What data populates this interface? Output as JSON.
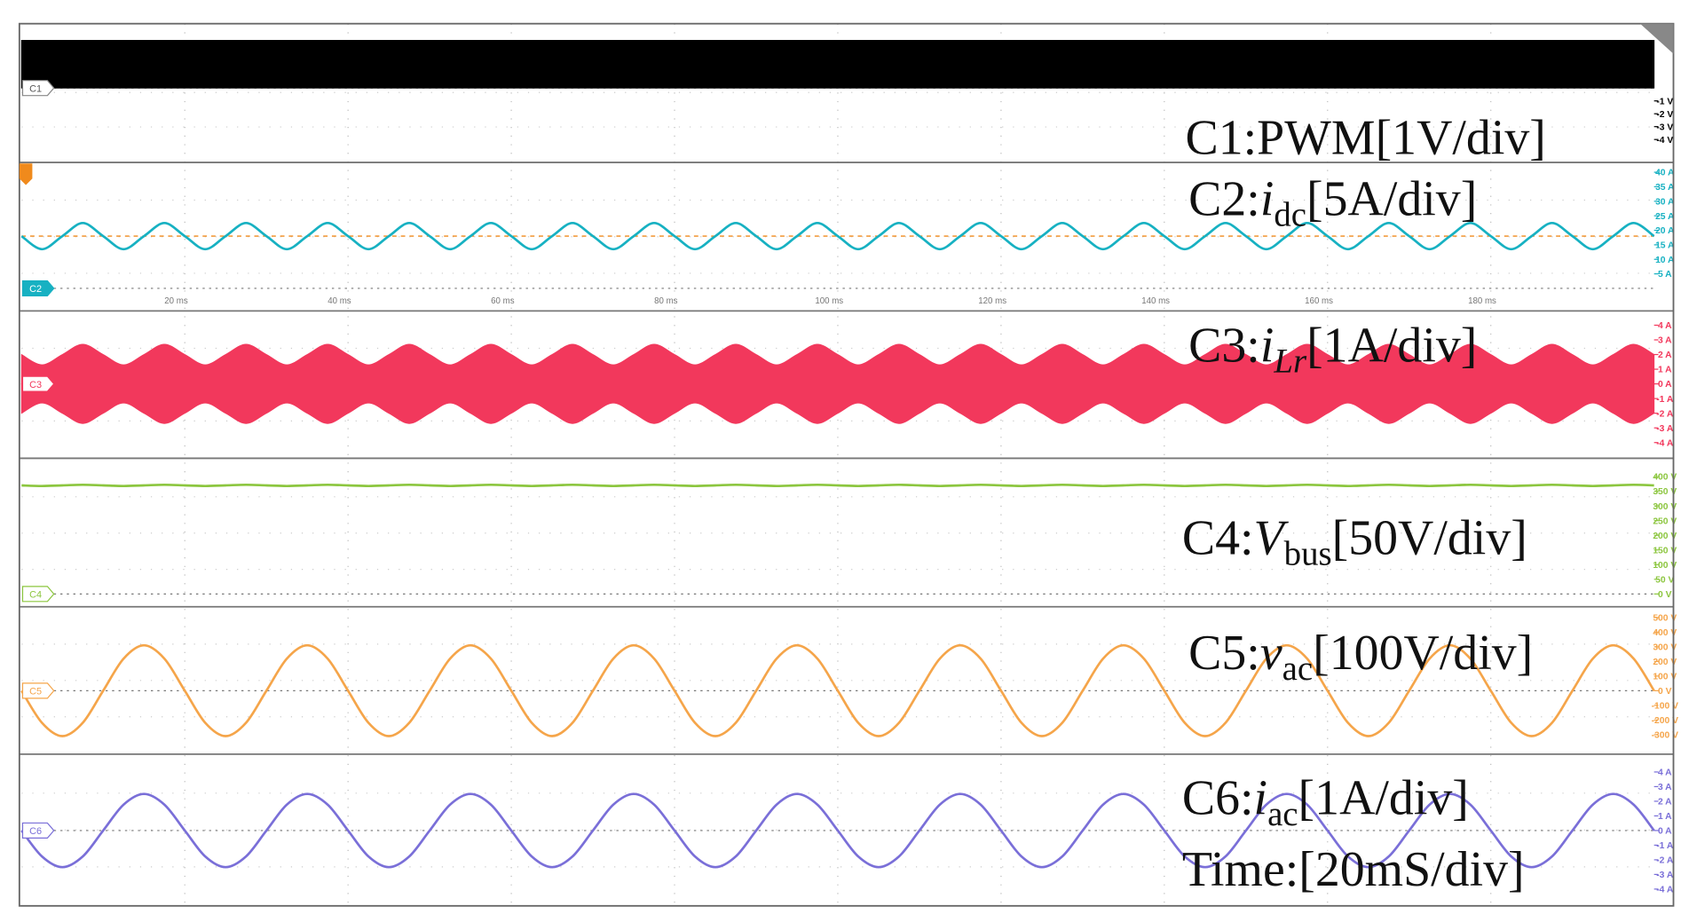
{
  "chart_data": [
    {
      "type": "band",
      "label": "C1:PWM[1V/div]",
      "marker": "C1",
      "color": "#000000",
      "x": [
        0,
        200
      ],
      "upper": [
        3.7,
        3.7
      ],
      "lower": [
        0,
        0
      ],
      "xlim": [
        0,
        200
      ],
      "ylim": [
        -5.7,
        5
      ],
      "yticks": [
        {
          "value": -1,
          "label": "-1 V"
        },
        {
          "value": -2,
          "label": "-2 V"
        },
        {
          "value": -3,
          "label": "-3 V"
        },
        {
          "value": -4,
          "label": "-4 V"
        }
      ]
    },
    {
      "type": "line",
      "label": {
        "prefix": "C2:",
        "symbol": "i",
        "subscript": "dc",
        "scale": "[5A/div]"
      },
      "marker": "C2",
      "color": "#17b1c2",
      "x": [
        0,
        2.5,
        5,
        7.5,
        10,
        12.5,
        15,
        17.5,
        20,
        22.5,
        25,
        27.5,
        30,
        32.5,
        35,
        37.5,
        40,
        42.5,
        45,
        47.5,
        50,
        52.5,
        55,
        57.5,
        60,
        62.5,
        65,
        67.5,
        70,
        72.5,
        75,
        77.5,
        80,
        82.5,
        85,
        87.5,
        90,
        92.5,
        95,
        97.5,
        100,
        102.5,
        105,
        107.5,
        110,
        112.5,
        115,
        117.5,
        120,
        122.5,
        125,
        127.5,
        130,
        132.5,
        135,
        137.5,
        140,
        142.5,
        145,
        147.5,
        150,
        152.5,
        155,
        157.5,
        160,
        162.5,
        165,
        167.5,
        170,
        172.5,
        175,
        177.5,
        180,
        182.5,
        185,
        187.5,
        190,
        192.5,
        195,
        197.5,
        200
      ],
      "values": [
        18,
        13.5,
        18,
        22.5,
        18,
        13.5,
        18,
        22.5,
        18,
        13.5,
        18,
        22.5,
        18,
        13.5,
        18,
        22.5,
        18,
        13.5,
        18,
        22.5,
        18,
        13.5,
        18,
        22.5,
        18,
        13.5,
        18,
        22.5,
        18,
        13.5,
        18,
        22.5,
        18,
        13.5,
        18,
        22.5,
        18,
        13.5,
        18,
        22.5,
        18,
        13.5,
        18,
        22.5,
        18,
        13.5,
        18,
        22.5,
        18,
        13.5,
        18,
        22.5,
        18,
        13.5,
        18,
        22.5,
        18,
        13.5,
        18,
        22.5,
        18,
        13.5,
        18,
        22.5,
        18,
        13.5,
        18,
        22.5,
        18,
        13.5,
        18,
        22.5,
        18,
        13.5,
        18,
        22.5,
        18,
        13.5,
        18,
        22.5,
        18
      ],
      "xlim": [
        0,
        200
      ],
      "xticks": [
        {
          "value": 20,
          "label": "20 ms"
        },
        {
          "value": 40,
          "label": "40 ms"
        },
        {
          "value": 60,
          "label": "60 ms"
        },
        {
          "value": 80,
          "label": "80 ms"
        },
        {
          "value": 100,
          "label": "100 ms"
        },
        {
          "value": 120,
          "label": "120 ms"
        },
        {
          "value": 140,
          "label": "140 ms"
        },
        {
          "value": 160,
          "label": "160 ms"
        },
        {
          "value": 180,
          "label": "180 ms"
        }
      ],
      "ylim": [
        -7.4,
        43
      ],
      "yticks": [
        {
          "value": 40,
          "label": "40 A"
        },
        {
          "value": 35,
          "label": "35 A"
        },
        {
          "value": 30,
          "label": "30 A"
        },
        {
          "value": 25,
          "label": "25 A"
        },
        {
          "value": 20,
          "label": "20 A"
        },
        {
          "value": 15,
          "label": "15 A"
        },
        {
          "value": 10,
          "label": "10 A"
        },
        {
          "value": 5,
          "label": "5 A"
        }
      ],
      "trigger_level": 18
    },
    {
      "type": "band",
      "label": {
        "prefix": "C3:",
        "symbol": "i",
        "subscript": "Lr",
        "scale": "[1A/div]"
      },
      "subscript_italic": true,
      "marker": "C3",
      "color": "#f2385c",
      "x": [
        0,
        2.5,
        5,
        7.5,
        10,
        12.5,
        15,
        17.5,
        20,
        22.5,
        25,
        27.5,
        30,
        32.5,
        35,
        37.5,
        40,
        42.5,
        45,
        47.5,
        50,
        52.5,
        55,
        57.5,
        60,
        62.5,
        65,
        67.5,
        70,
        72.5,
        75,
        77.5,
        80,
        82.5,
        85,
        87.5,
        90,
        92.5,
        95,
        97.5,
        100,
        102.5,
        105,
        107.5,
        110,
        112.5,
        115,
        117.5,
        120,
        122.5,
        125,
        127.5,
        130,
        132.5,
        135,
        137.5,
        140,
        142.5,
        145,
        147.5,
        150,
        152.5,
        155,
        157.5,
        160,
        162.5,
        165,
        167.5,
        170,
        172.5,
        175,
        177.5,
        180,
        182.5,
        185,
        187.5,
        190,
        192.5,
        195,
        197.5,
        200
      ],
      "upper": [
        2,
        1.3,
        2,
        2.7,
        2,
        1.3,
        2,
        2.7,
        2,
        1.3,
        2,
        2.7,
        2,
        1.3,
        2,
        2.7,
        2,
        1.3,
        2,
        2.7,
        2,
        1.3,
        2,
        2.7,
        2,
        1.3,
        2,
        2.7,
        2,
        1.3,
        2,
        2.7,
        2,
        1.3,
        2,
        2.7,
        2,
        1.3,
        2,
        2.7,
        2,
        1.3,
        2,
        2.7,
        2,
        1.3,
        2,
        2.7,
        2,
        1.3,
        2,
        2.7,
        2,
        1.3,
        2,
        2.7,
        2,
        1.3,
        2,
        2.7,
        2,
        1.3,
        2,
        2.7,
        2,
        1.3,
        2,
        2.7,
        2,
        1.3,
        2,
        2.7,
        2,
        1.3,
        2,
        2.7,
        2,
        1.3,
        2,
        2.7,
        2
      ],
      "lower": [
        -2,
        -1.3,
        -2,
        -2.7,
        -2,
        -1.3,
        -2,
        -2.7,
        -2,
        -1.3,
        -2,
        -2.7,
        -2,
        -1.3,
        -2,
        -2.7,
        -2,
        -1.3,
        -2,
        -2.7,
        -2,
        -1.3,
        -2,
        -2.7,
        -2,
        -1.3,
        -2,
        -2.7,
        -2,
        -1.3,
        -2,
        -2.7,
        -2,
        -1.3,
        -2,
        -2.7,
        -2,
        -1.3,
        -2,
        -2.7,
        -2,
        -1.3,
        -2,
        -2.7,
        -2,
        -1.3,
        -2,
        -2.7,
        -2,
        -1.3,
        -2,
        -2.7,
        -2,
        -1.3,
        -2,
        -2.7,
        -2,
        -1.3,
        -2,
        -2.7,
        -2,
        -1.3,
        -2,
        -2.7,
        -2,
        -1.3,
        -2,
        -2.7,
        -2,
        -1.3,
        -2,
        -2.7,
        -2,
        -1.3,
        -2,
        -2.7,
        -2,
        -1.3,
        -2,
        -2.7,
        -2
      ],
      "xlim": [
        0,
        200
      ],
      "ylim": [
        -5,
        4.9
      ],
      "yticks": [
        {
          "value": 4,
          "label": "4 A"
        },
        {
          "value": 3,
          "label": "3 A"
        },
        {
          "value": 2,
          "label": "2 A"
        },
        {
          "value": 1,
          "label": "1 A"
        },
        {
          "value": 0,
          "label": "0 A"
        },
        {
          "value": -1,
          "label": "-1 A"
        },
        {
          "value": -2,
          "label": "-2 A"
        },
        {
          "value": -3,
          "label": "-3 A"
        },
        {
          "value": -4,
          "label": "-4 A"
        }
      ]
    },
    {
      "type": "line",
      "label": {
        "prefix": "C4:",
        "symbol": "V",
        "subscript": "bus",
        "scale": "[50V/div]"
      },
      "marker": "C4",
      "color": "#8cc63f",
      "x": [
        0,
        2.5,
        5,
        7.5,
        10,
        12.5,
        15,
        17.5,
        20,
        22.5,
        25,
        27.5,
        30,
        32.5,
        35,
        37.5,
        40,
        42.5,
        45,
        47.5,
        50,
        52.5,
        55,
        57.5,
        60,
        62.5,
        65,
        67.5,
        70,
        72.5,
        75,
        77.5,
        80,
        82.5,
        85,
        87.5,
        90,
        92.5,
        95,
        97.5,
        100,
        102.5,
        105,
        107.5,
        110,
        112.5,
        115,
        117.5,
        120,
        122.5,
        125,
        127.5,
        130,
        132.5,
        135,
        137.5,
        140,
        142.5,
        145,
        147.5,
        150,
        152.5,
        155,
        157.5,
        160,
        162.5,
        165,
        167.5,
        170,
        172.5,
        175,
        177.5,
        180,
        182.5,
        185,
        187.5,
        190,
        192.5,
        195,
        197.5,
        200
      ],
      "values": [
        370,
        368,
        370,
        372,
        370,
        368,
        370,
        372,
        370,
        368,
        370,
        372,
        370,
        368,
        370,
        372,
        370,
        368,
        370,
        372,
        370,
        368,
        370,
        372,
        370,
        368,
        370,
        372,
        370,
        368,
        370,
        372,
        370,
        368,
        370,
        372,
        370,
        368,
        370,
        372,
        370,
        368,
        370,
        372,
        370,
        368,
        370,
        372,
        370,
        368,
        370,
        372,
        370,
        368,
        370,
        372,
        370,
        368,
        370,
        372,
        370,
        368,
        370,
        372,
        370,
        368,
        370,
        372,
        370,
        368,
        370,
        372,
        370,
        368,
        370,
        372,
        370,
        368,
        370,
        372,
        370
      ],
      "xlim": [
        0,
        200
      ],
      "ylim": [
        -40,
        455
      ],
      "yticks": [
        {
          "value": 400,
          "label": "400 V"
        },
        {
          "value": 350,
          "label": "350 V"
        },
        {
          "value": 300,
          "label": "300 V"
        },
        {
          "value": 250,
          "label": "250 V"
        },
        {
          "value": 200,
          "label": "200 V"
        },
        {
          "value": 150,
          "label": "150 V"
        },
        {
          "value": 100,
          "label": "100 V"
        },
        {
          "value": 50,
          "label": "50 V"
        },
        {
          "value": 0,
          "label": "0 V"
        }
      ]
    },
    {
      "type": "line",
      "label": {
        "prefix": "C5:",
        "symbol": "v",
        "subscript": "ac",
        "scale": "[100V/div]"
      },
      "marker": "C5",
      "color": "#f5a54a",
      "x": [
        0,
        2.5,
        5,
        7.5,
        10,
        12.5,
        15,
        17.5,
        20,
        22.5,
        25,
        27.5,
        30,
        32.5,
        35,
        37.5,
        40,
        42.5,
        45,
        47.5,
        50,
        52.5,
        55,
        57.5,
        60,
        62.5,
        65,
        67.5,
        70,
        72.5,
        75,
        77.5,
        80,
        82.5,
        85,
        87.5,
        90,
        92.5,
        95,
        97.5,
        100,
        102.5,
        105,
        107.5,
        110,
        112.5,
        115,
        117.5,
        120,
        122.5,
        125,
        127.5,
        130,
        132.5,
        135,
        137.5,
        140,
        142.5,
        145,
        147.5,
        150,
        152.5,
        155,
        157.5,
        160,
        162.5,
        165,
        167.5,
        170,
        172.5,
        175,
        177.5,
        180,
        182.5,
        185,
        187.5,
        190,
        192.5,
        195,
        197.5,
        200
      ],
      "values": [
        0,
        -219,
        -310,
        -219,
        0,
        219,
        310,
        219,
        0,
        -219,
        -310,
        -219,
        0,
        219,
        310,
        219,
        0,
        -219,
        -310,
        -219,
        0,
        219,
        310,
        219,
        0,
        -219,
        -310,
        -219,
        0,
        219,
        310,
        219,
        0,
        -219,
        -310,
        -219,
        0,
        219,
        310,
        219,
        0,
        -219,
        -310,
        -219,
        0,
        219,
        310,
        219,
        0,
        -219,
        -310,
        -219,
        0,
        219,
        310,
        219,
        0,
        -219,
        -310,
        -219,
        0,
        219,
        310,
        219,
        0,
        -219,
        -310,
        -219,
        0,
        219,
        310,
        219,
        0,
        -219,
        -310,
        -219,
        0,
        219,
        310,
        219,
        0
      ],
      "xlim": [
        0,
        200
      ],
      "ylim": [
        -426,
        566
      ],
      "yticks": [
        {
          "value": 500,
          "label": "500 V"
        },
        {
          "value": 400,
          "label": "400 V"
        },
        {
          "value": 300,
          "label": "300 V"
        },
        {
          "value": 200,
          "label": "200 V"
        },
        {
          "value": 100,
          "label": "100 V"
        },
        {
          "value": 0,
          "label": "0 V"
        },
        {
          "value": -100,
          "label": "-100 V"
        },
        {
          "value": -200,
          "label": "-200 V"
        },
        {
          "value": -300,
          "label": "-300 V"
        }
      ]
    },
    {
      "type": "line",
      "label": {
        "prefix": "C6:",
        "symbol": "i",
        "subscript": "ac",
        "scale": "[1A/div]"
      },
      "marker": "C6",
      "color": "#7a6fd8",
      "x": [
        0,
        2.5,
        5,
        7.5,
        10,
        12.5,
        15,
        17.5,
        20,
        22.5,
        25,
        27.5,
        30,
        32.5,
        35,
        37.5,
        40,
        42.5,
        45,
        47.5,
        50,
        52.5,
        55,
        57.5,
        60,
        62.5,
        65,
        67.5,
        70,
        72.5,
        75,
        77.5,
        80,
        82.5,
        85,
        87.5,
        90,
        92.5,
        95,
        97.5,
        100,
        102.5,
        105,
        107.5,
        110,
        112.5,
        115,
        117.5,
        120,
        122.5,
        125,
        127.5,
        130,
        132.5,
        135,
        137.5,
        140,
        142.5,
        145,
        147.5,
        150,
        152.5,
        155,
        157.5,
        160,
        162.5,
        165,
        167.5,
        170,
        172.5,
        175,
        177.5,
        180,
        182.5,
        185,
        187.5,
        190,
        192.5,
        195,
        197.5,
        200
      ],
      "values": [
        0,
        -1.77,
        -2.5,
        -1.77,
        0,
        1.77,
        2.5,
        1.77,
        0,
        -1.77,
        -2.5,
        -1.77,
        0,
        1.77,
        2.5,
        1.77,
        0,
        -1.77,
        -2.5,
        -1.77,
        0,
        1.77,
        2.5,
        1.77,
        0,
        -1.77,
        -2.5,
        -1.77,
        0,
        1.77,
        2.5,
        1.77,
        0,
        -1.77,
        -2.5,
        -1.77,
        0,
        1.77,
        2.5,
        1.77,
        0,
        -1.77,
        -2.5,
        -1.77,
        0,
        1.77,
        2.5,
        1.77,
        0,
        -1.77,
        -2.5,
        -1.77,
        0,
        1.77,
        2.5,
        1.77,
        0,
        -1.77,
        -2.5,
        -1.77,
        0,
        1.77,
        2.5,
        1.77,
        0,
        -1.77,
        -2.5,
        -1.77,
        0,
        1.77,
        2.5,
        1.77,
        0,
        -1.77,
        -2.5,
        -1.77,
        0,
        1.77,
        2.5,
        1.77,
        0
      ],
      "xlim": [
        0,
        200
      ],
      "ylim": [
        -5,
        5.07
      ],
      "yticks": [
        {
          "value": 4,
          "label": "4 A"
        },
        {
          "value": 3,
          "label": "3 A"
        },
        {
          "value": 2,
          "label": "2 A"
        },
        {
          "value": 1,
          "label": "1 A"
        },
        {
          "value": 0,
          "label": "0 A"
        },
        {
          "value": -1,
          "label": "-1 A"
        },
        {
          "value": -2,
          "label": "-2 A"
        },
        {
          "value": -3,
          "label": "-3 A"
        },
        {
          "value": -4,
          "label": "-4 A"
        }
      ]
    }
  ],
  "annotation": "Time:[20mS/div]"
}
